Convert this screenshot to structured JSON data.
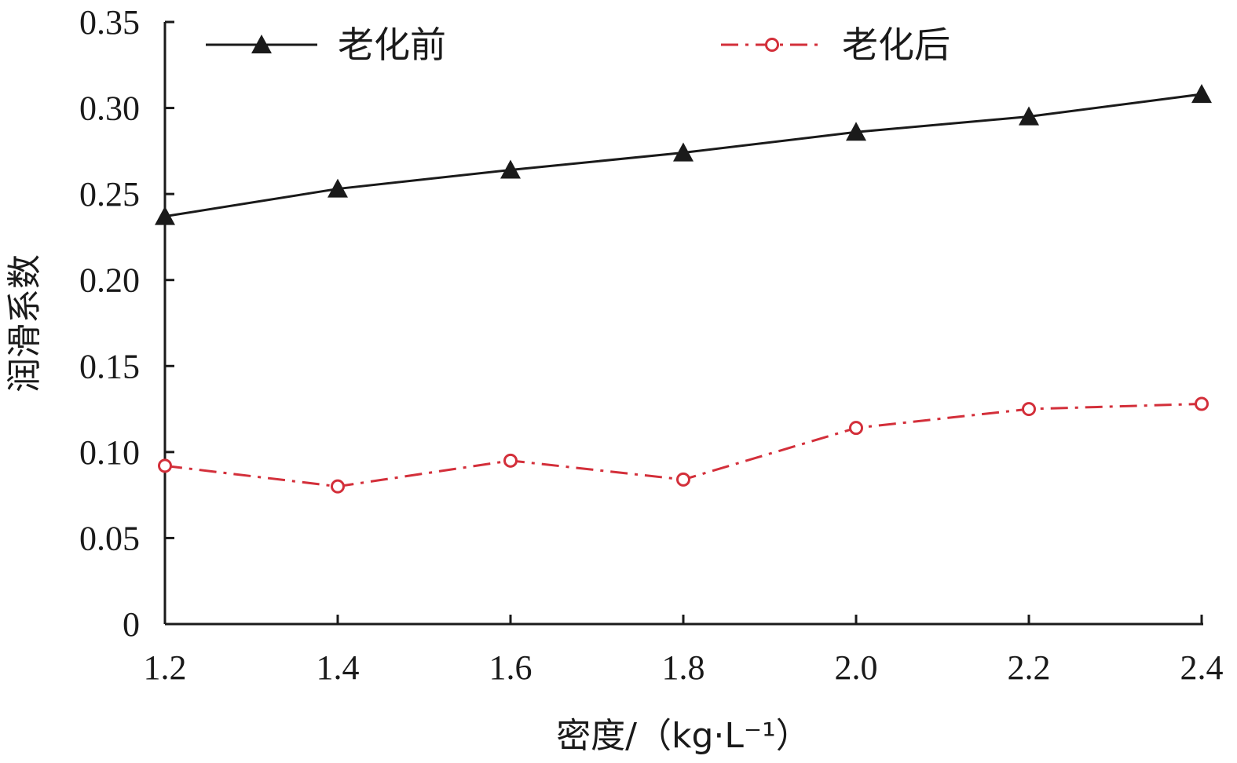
{
  "chart_data": {
    "type": "line",
    "xlabel": "密度/（kg·L⁻¹）",
    "ylabel": "润滑系数",
    "x": [
      1.2,
      1.4,
      1.6,
      1.8,
      2.0,
      2.2,
      2.4
    ],
    "x_tick_labels": [
      "1.2",
      "1.4",
      "1.6",
      "1.8",
      "2.0",
      "2.2",
      "2.4"
    ],
    "xlim": [
      1.2,
      2.4
    ],
    "ylim": [
      0,
      0.35
    ],
    "y_ticks": [
      0,
      0.05,
      0.1,
      0.15,
      0.2,
      0.25,
      0.3,
      0.35
    ],
    "y_tick_labels": [
      "0",
      "0.05",
      "0.10",
      "0.15",
      "0.20",
      "0.25",
      "0.30",
      "0.35"
    ],
    "grid": false,
    "legend_position": "top",
    "series": [
      {
        "name": "老化前",
        "values": [
          0.237,
          0.253,
          0.264,
          0.274,
          0.286,
          0.295,
          0.308
        ],
        "color": "#1a1a1a",
        "marker": "triangle",
        "line_style": "solid"
      },
      {
        "name": "老化后",
        "values": [
          0.092,
          0.08,
          0.095,
          0.084,
          0.114,
          0.125,
          0.128
        ],
        "color": "#d32f3a",
        "marker": "open-circle",
        "line_style": "dash-dot"
      }
    ]
  }
}
